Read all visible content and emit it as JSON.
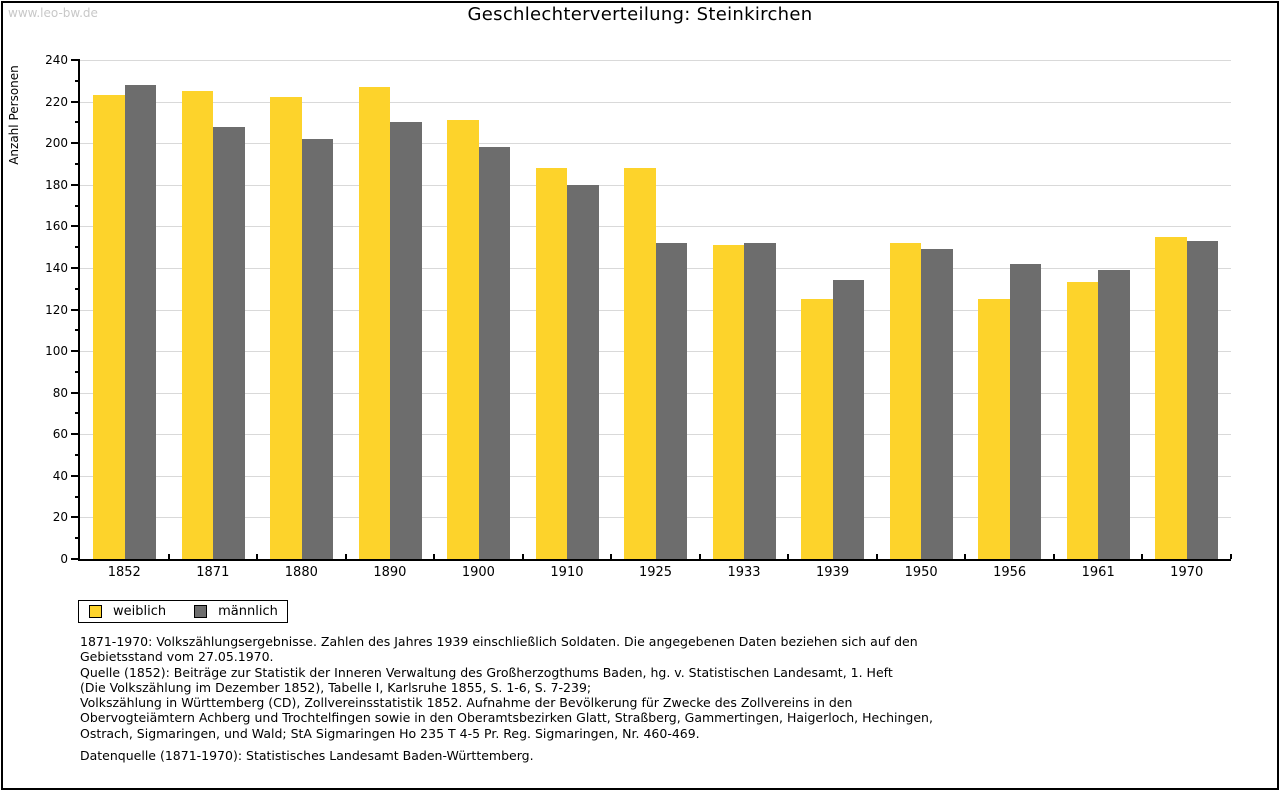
{
  "watermark": "www.leo-bw.de",
  "title": "Geschlechterverteilung: Steinkirchen",
  "colors": {
    "weiblich": "#fdd32b",
    "maennlich": "#6d6d6d",
    "gridline": "#d9d9d9",
    "axis": "#000000",
    "watermark": "#c8c8c8"
  },
  "chart_data": {
    "type": "bar",
    "title": "Geschlechterverteilung: Steinkirchen",
    "xlabel": "",
    "ylabel": "Anzahl Personen",
    "categories": [
      "1852",
      "1871",
      "1880",
      "1890",
      "1900",
      "1910",
      "1925",
      "1933",
      "1939",
      "1950",
      "1956",
      "1961",
      "1970"
    ],
    "series": [
      {
        "name": "weiblich",
        "color": "#fdd32b",
        "values": [
          223,
          225,
          222,
          227,
          211,
          188,
          188,
          151,
          125,
          152,
          125,
          133,
          155
        ]
      },
      {
        "name": "männlich",
        "color": "#6d6d6d",
        "values": [
          228,
          208,
          202,
          210,
          198,
          180,
          152,
          152,
          134,
          149,
          142,
          139,
          153
        ]
      }
    ],
    "ylim": [
      0,
      240
    ],
    "yticks": [
      0,
      20,
      40,
      60,
      80,
      100,
      120,
      140,
      160,
      180,
      200,
      220,
      240
    ],
    "minor_tick_step": 10,
    "grid": true,
    "legend_position": "bottom-left"
  },
  "legend": {
    "items": [
      {
        "label": "weiblich"
      },
      {
        "label": "männlich"
      }
    ]
  },
  "footer": {
    "lines": [
      "1871-1970: Volkszählungsergebnisse. Zahlen des Jahres 1939 einschließlich Soldaten. Die angegebenen Daten beziehen sich auf den",
      "Gebietsstand vom 27.05.1970.",
      "Quelle (1852): Beiträge zur Statistik der Inneren Verwaltung des Großherzogthums Baden, hg. v. Statistischen Landesamt, 1. Heft",
      "(Die Volkszählung im Dezember 1852), Tabelle I, Karlsruhe 1855, S. 1-6, S. 7-239;",
      "Volkszählung in Württemberg (CD), Zollvereinsstatistik 1852. Aufnahme der Bevölkerung für Zwecke des Zollvereins in den",
      "Obervogteiämtern Achberg und Trochtelfingen sowie in den Oberamtsbezirken Glatt, Straßberg, Gammertingen, Haigerloch, Hechingen,",
      "Ostrach, Sigmaringen, und Wald; StA Sigmaringen Ho 235 T 4-5 Pr. Reg. Sigmaringen, Nr. 460-469.",
      "",
      "Datenquelle (1871-1970): Statistisches Landesamt Baden-Württemberg."
    ]
  }
}
